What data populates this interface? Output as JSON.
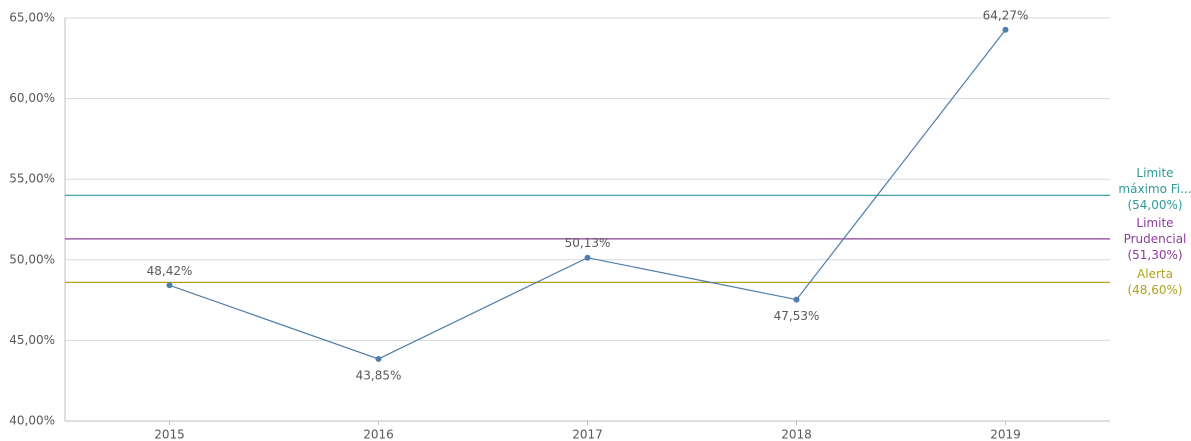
{
  "chart_data": {
    "type": "line",
    "categories": [
      "2015",
      "2016",
      "2017",
      "2018",
      "2019"
    ],
    "series": [
      {
        "color": "#4e7eaa",
        "values": [
          48.42,
          43.85,
          50.13,
          47.53,
          64.27
        ],
        "value_labels": [
          "48,42%",
          "43,85%",
          "50,13%",
          "47,53%",
          "64,27%"
        ]
      }
    ],
    "ylim": [
      40,
      65
    ],
    "yticks": [
      {
        "value": 40,
        "label": "40,00%"
      },
      {
        "value": 45,
        "label": "45,00%"
      },
      {
        "value": 50,
        "label": "50,00%"
      },
      {
        "value": 55,
        "label": "55,00%"
      },
      {
        "value": 60,
        "label": "60,00%"
      },
      {
        "value": 65,
        "label": "65,00%"
      }
    ],
    "grid": true,
    "reference_lines": [
      {
        "label": "Limite máximo Fi... (54,00%)",
        "value": 54,
        "color": "#2f9a9a"
      },
      {
        "label": "Limite Prudencial (51,30%)",
        "value": 51.3,
        "color": "#8b3c99"
      },
      {
        "label": "Alerta (48,60%)",
        "value": 48.6,
        "color": "#b5a21c"
      }
    ]
  }
}
